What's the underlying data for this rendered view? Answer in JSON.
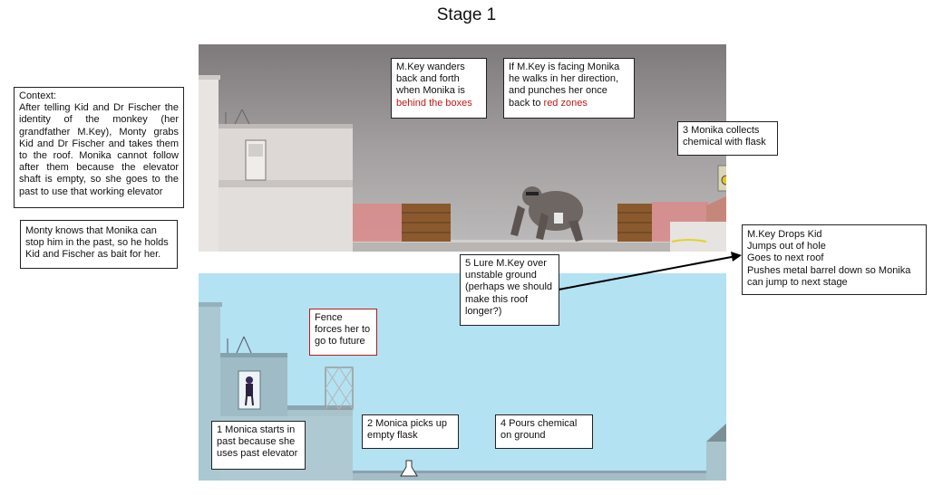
{
  "title": "Stage 1",
  "context_note": {
    "heading": "Context:",
    "body": "After telling Kid and Dr Fischer the identity of the monkey (her grandfather M.Key), Monty grabs Kid and Dr Fischer and takes them to the roof. Monika cannot follow after them because the elevator shaft is empty, so she goes to the past to use that working elevator"
  },
  "monty_note": "Monty knows that Monika can stop him in the past, so he holds Kid and Fischer as bait for her.",
  "top_panel_notes": {
    "wander": {
      "text": "M.Key wanders back and forth when Monika is ",
      "highlight": "behind the boxes"
    },
    "facing": {
      "text": "If M.Key is facing Monika he walks in her direction, and punches her once back to ",
      "highlight": "red zones"
    },
    "collect": "3 Monika collects chemical with flask"
  },
  "lure_note": "5 Lure M.Key over unstable ground (perhaps we should make this roof longer?)",
  "drops_note": {
    "lines": [
      "M.Key Drops Kid",
      "Jumps out of hole",
      "Goes to next roof",
      "Pushes metal barrel down so Monika can jump to next stage"
    ]
  },
  "bottom_panel_notes": {
    "fence": "Fence forces her to go to future",
    "start": "1 Monica starts in past because she uses past elevator",
    "flask": "2 Monica picks up empty flask",
    "pour": "4 Pours chemical on ground"
  },
  "colors": {
    "future_sky": "#898384",
    "past_sky": "#b3e2f2",
    "red_zone": "#d98a8a",
    "accent_red": "#c01818"
  }
}
